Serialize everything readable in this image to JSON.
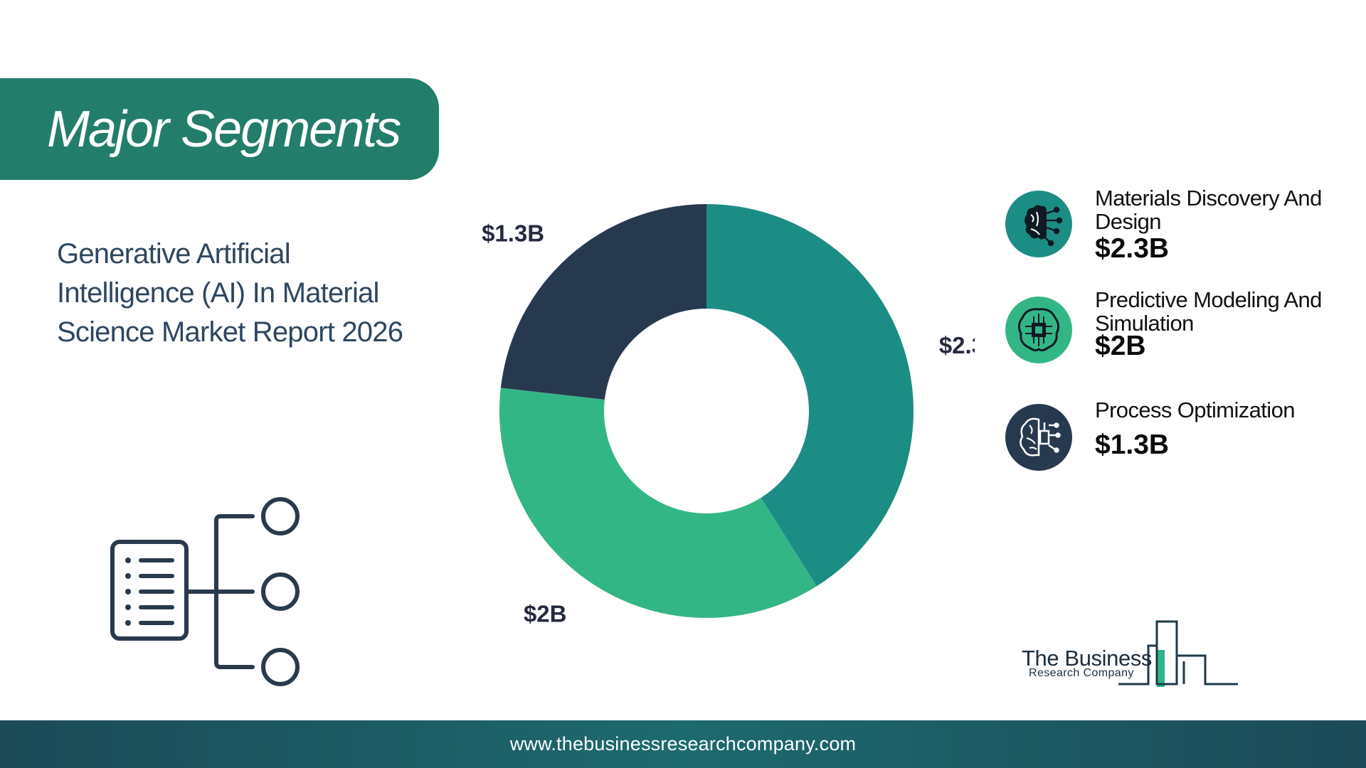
{
  "banner": {
    "title": "Major Segments"
  },
  "report": {
    "title": "Generative Artificial Intelligence (AI) In Material Science Market Report 2026"
  },
  "chart_data": {
    "type": "pie",
    "title": "",
    "donut": true,
    "categories": [
      "Materials Discovery And Design",
      "Predictive Modeling And Simulation",
      "Process Optimization"
    ],
    "values": [
      2.3,
      2.0,
      1.3
    ],
    "value_labels": [
      "$2.3B",
      "$2B",
      "$1.3B"
    ],
    "colors": [
      "#1c8d84",
      "#33b686",
      "#27394f"
    ],
    "legend_position": "right"
  },
  "legend": {
    "items": [
      {
        "name": "Materials Discovery And Design",
        "value": "$2.3B",
        "icon": "brain-circuit-icon",
        "icon_color": "#1c8d84"
      },
      {
        "name": "Predictive Modeling And Simulation",
        "value": "$2B",
        "icon": "chip-brain-icon",
        "icon_color": "#33b686"
      },
      {
        "name": "Process Optimization",
        "value": "$1.3B",
        "icon": "brain-chip-icon",
        "icon_color": "#27394f"
      }
    ]
  },
  "logo": {
    "name": "The Business",
    "sub": "Research Company"
  },
  "footer": {
    "url": "www.thebusinessresearchcompany.com"
  }
}
